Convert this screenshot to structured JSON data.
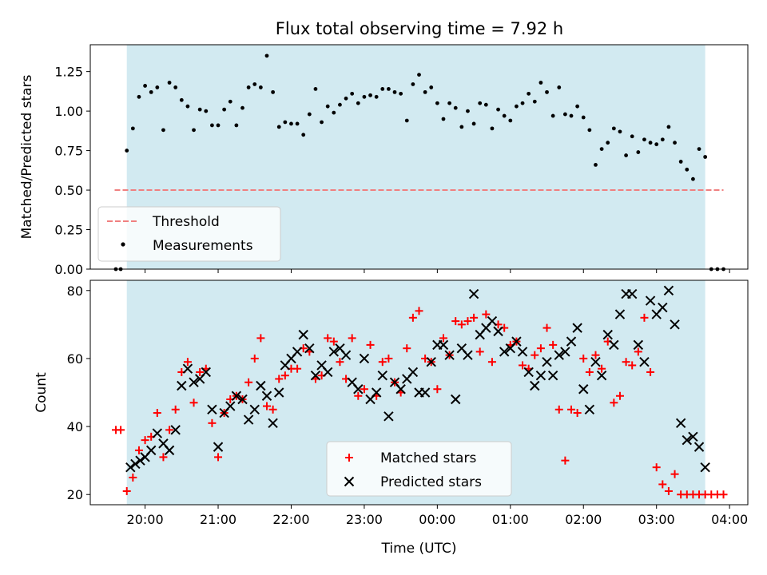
{
  "colors": {
    "band": "#add8e6",
    "threshold": "#f08080",
    "measurement": "#000000",
    "matched": "#ff0000",
    "predicted": "#000000"
  },
  "chart_data": [
    {
      "type": "scatter",
      "title": "Flux total observing time = 7.92 h",
      "xlabel": "",
      "ylabel": "Matched/Predicted stars",
      "x_unit": "time (UTC)",
      "xlim": [
        "19:15",
        "04:15"
      ],
      "ylim": [
        0,
        1.42
      ],
      "yticks": [
        0,
        0.25,
        0.5,
        0.75,
        1.0,
        1.25
      ],
      "ytick_labels": [
        "0.00",
        "0.25",
        "0.50",
        "0.75",
        "1.00",
        "1.25"
      ],
      "xticks": [
        "20:00",
        "21:00",
        "22:00",
        "23:00",
        "00:00",
        "01:00",
        "02:00",
        "03:00",
        "04:00"
      ],
      "observing_window": [
        "19:45",
        "03:40"
      ],
      "threshold": {
        "name": "Threshold",
        "value": 0.5,
        "x_range": [
          "19:35",
          "03:55"
        ]
      },
      "legend": [
        "Threshold",
        "Measurements"
      ],
      "legend_position": "lower-left",
      "series": [
        {
          "name": "Measurements",
          "x": [
            "19:36",
            "19:40",
            "19:45",
            "19:50",
            "19:55",
            "20:00",
            "20:05",
            "20:10",
            "20:15",
            "20:20",
            "20:25",
            "20:30",
            "20:35",
            "20:40",
            "20:45",
            "20:50",
            "20:55",
            "21:00",
            "21:05",
            "21:10",
            "21:15",
            "21:20",
            "21:25",
            "21:30",
            "21:35",
            "21:40",
            "21:45",
            "21:50",
            "21:55",
            "22:00",
            "22:05",
            "22:10",
            "22:15",
            "22:20",
            "22:25",
            "22:30",
            "22:35",
            "22:40",
            "22:45",
            "22:50",
            "22:55",
            "23:00",
            "23:05",
            "23:10",
            "23:15",
            "23:20",
            "23:25",
            "23:30",
            "23:35",
            "23:40",
            "23:45",
            "23:50",
            "23:55",
            "00:00",
            "00:05",
            "00:10",
            "00:15",
            "00:20",
            "00:25",
            "00:30",
            "00:35",
            "00:40",
            "00:45",
            "00:50",
            "00:55",
            "01:00",
            "01:05",
            "01:10",
            "01:15",
            "01:20",
            "01:25",
            "01:30",
            "01:35",
            "01:40",
            "01:45",
            "01:50",
            "01:55",
            "02:00",
            "02:05",
            "02:10",
            "02:15",
            "02:20",
            "02:25",
            "02:30",
            "02:35",
            "02:40",
            "02:45",
            "02:50",
            "02:55",
            "03:00",
            "03:05",
            "03:10",
            "03:15",
            "03:20",
            "03:25",
            "03:30",
            "03:35",
            "03:40",
            "03:45",
            "03:50",
            "03:55"
          ],
          "y": [
            0.0,
            0.0,
            0.75,
            0.89,
            1.09,
            1.16,
            1.12,
            1.15,
            0.88,
            1.18,
            1.15,
            1.07,
            1.03,
            0.88,
            1.01,
            1.0,
            0.91,
            0.91,
            1.01,
            1.06,
            0.91,
            1.02,
            1.15,
            1.17,
            1.15,
            1.35,
            1.12,
            0.9,
            0.93,
            0.92,
            0.92,
            0.85,
            0.98,
            1.14,
            0.93,
            1.03,
            0.99,
            1.04,
            1.08,
            1.11,
            1.05,
            1.09,
            1.1,
            1.09,
            1.14,
            1.14,
            1.12,
            1.11,
            0.94,
            1.17,
            1.23,
            1.12,
            1.15,
            1.05,
            0.95,
            1.05,
            1.02,
            0.9,
            1.0,
            0.92,
            1.05,
            1.04,
            0.89,
            1.01,
            0.97,
            0.94,
            1.03,
            1.05,
            1.11,
            1.06,
            1.18,
            1.12,
            0.97,
            1.15,
            0.98,
            0.97,
            1.03,
            0.96,
            0.88,
            0.66,
            0.76,
            0.8,
            0.89,
            0.87,
            0.72,
            0.84,
            0.74,
            0.82,
            0.8,
            0.79,
            0.82,
            0.9,
            0.8,
            0.68,
            0.63,
            0.57,
            0.76,
            0.71,
            0.0,
            0.0,
            0.0
          ]
        }
      ]
    },
    {
      "type": "scatter",
      "title": "",
      "xlabel": "Time (UTC)",
      "ylabel": "Count",
      "x_unit": "time (UTC)",
      "xlim": [
        "19:15",
        "04:15"
      ],
      "ylim": [
        17,
        83
      ],
      "yticks": [
        20,
        40,
        60,
        80
      ],
      "ytick_labels": [
        "20",
        "40",
        "60",
        "80"
      ],
      "xticks": [
        "20:00",
        "21:00",
        "22:00",
        "23:00",
        "00:00",
        "01:00",
        "02:00",
        "03:00",
        "04:00"
      ],
      "xtick_labels": [
        "20:00",
        "21:00",
        "22:00",
        "23:00",
        "00:00",
        "01:00",
        "02:00",
        "03:00",
        "04:00"
      ],
      "observing_window": [
        "19:45",
        "03:40"
      ],
      "legend": [
        "Matched stars",
        "Predicted stars"
      ],
      "legend_position": "lower-center",
      "series": [
        {
          "name": "Matched stars",
          "x": [
            "19:36",
            "19:40",
            "19:45",
            "19:50",
            "19:55",
            "20:00",
            "20:05",
            "20:10",
            "20:15",
            "20:20",
            "20:25",
            "20:30",
            "20:35",
            "20:40",
            "20:45",
            "20:50",
            "20:55",
            "21:00",
            "21:05",
            "21:10",
            "21:15",
            "21:20",
            "21:25",
            "21:30",
            "21:35",
            "21:40",
            "21:45",
            "21:50",
            "21:55",
            "22:00",
            "22:05",
            "22:10",
            "22:15",
            "22:20",
            "22:25",
            "22:30",
            "22:35",
            "22:40",
            "22:45",
            "22:50",
            "22:55",
            "23:00",
            "23:05",
            "23:10",
            "23:15",
            "23:20",
            "23:25",
            "23:30",
            "23:35",
            "23:40",
            "23:45",
            "23:50",
            "23:55",
            "00:00",
            "00:05",
            "00:10",
            "00:15",
            "00:20",
            "00:25",
            "00:30",
            "00:35",
            "00:40",
            "00:45",
            "00:50",
            "00:55",
            "01:00",
            "01:05",
            "01:10",
            "01:15",
            "01:20",
            "01:25",
            "01:30",
            "01:35",
            "01:40",
            "01:45",
            "01:50",
            "01:55",
            "02:00",
            "02:05",
            "02:10",
            "02:15",
            "02:20",
            "02:25",
            "02:30",
            "02:35",
            "02:40",
            "02:45",
            "02:50",
            "02:55",
            "03:00",
            "03:05",
            "03:10",
            "03:15",
            "03:20",
            "03:25",
            "03:30",
            "03:35",
            "03:40",
            "03:45",
            "03:50",
            "03:55"
          ],
          "y": [
            39,
            39,
            21,
            25,
            33,
            36,
            37,
            44,
            31,
            39,
            45,
            56,
            59,
            47,
            56,
            57,
            41,
            31,
            44,
            48,
            49,
            48,
            53,
            60,
            66,
            46,
            45,
            54,
            55,
            57,
            57,
            63,
            62,
            54,
            55,
            66,
            65,
            59,
            54,
            66,
            49,
            51,
            64,
            49,
            59,
            60,
            53,
            50,
            63,
            72,
            74,
            60,
            59,
            51,
            66,
            61,
            71,
            70,
            71,
            72,
            62,
            73,
            59,
            70,
            69,
            64,
            65,
            58,
            57,
            61,
            63,
            69,
            64,
            45,
            30,
            45,
            44,
            60,
            56,
            61,
            57,
            65,
            47,
            49,
            59,
            58,
            62,
            72,
            56,
            28,
            23,
            21,
            26,
            20,
            20,
            20,
            20,
            20,
            20,
            20,
            20
          ]
        },
        {
          "name": "Predicted stars",
          "x": [
            "19:48",
            "19:52",
            "19:56",
            "20:00",
            "20:05",
            "20:10",
            "20:15",
            "20:20",
            "20:25",
            "20:30",
            "20:35",
            "20:40",
            "20:45",
            "20:50",
            "20:55",
            "21:00",
            "21:05",
            "21:10",
            "21:15",
            "21:20",
            "21:25",
            "21:30",
            "21:35",
            "21:40",
            "21:45",
            "21:50",
            "21:55",
            "22:00",
            "22:05",
            "22:10",
            "22:15",
            "22:20",
            "22:25",
            "22:30",
            "22:35",
            "22:40",
            "22:45",
            "22:50",
            "22:55",
            "23:00",
            "23:05",
            "23:10",
            "23:15",
            "23:20",
            "23:25",
            "23:30",
            "23:35",
            "23:40",
            "23:45",
            "23:50",
            "23:55",
            "00:00",
            "00:05",
            "00:10",
            "00:15",
            "00:20",
            "00:25",
            "00:30",
            "00:35",
            "00:40",
            "00:45",
            "00:50",
            "00:55",
            "01:00",
            "01:05",
            "01:10",
            "01:15",
            "01:20",
            "01:25",
            "01:30",
            "01:35",
            "01:40",
            "01:45",
            "01:50",
            "01:55",
            "02:00",
            "02:05",
            "02:10",
            "02:15",
            "02:20",
            "02:25",
            "02:30",
            "02:35",
            "02:40",
            "02:45",
            "02:50",
            "02:55",
            "03:00",
            "03:05",
            "03:10",
            "03:15",
            "03:20",
            "03:25",
            "03:30",
            "03:35",
            "03:40"
          ],
          "y": [
            28,
            29,
            30,
            31,
            33,
            38,
            35,
            33,
            39,
            52,
            57,
            53,
            54,
            56,
            45,
            34,
            44,
            46,
            49,
            48,
            42,
            45,
            52,
            49,
            41,
            50,
            58,
            60,
            62,
            67,
            63,
            55,
            58,
            56,
            62,
            63,
            61,
            53,
            51,
            60,
            48,
            50,
            55,
            43,
            53,
            51,
            54,
            56,
            50,
            50,
            59,
            64,
            64,
            61,
            48,
            63,
            61,
            79,
            67,
            69,
            71,
            68,
            62,
            63,
            65,
            62,
            56,
            52,
            55,
            59,
            55,
            61,
            62,
            65,
            69,
            51,
            45,
            59,
            55,
            67,
            64,
            73,
            79,
            79,
            64,
            59,
            77,
            73,
            75,
            80,
            70,
            41,
            36,
            37,
            34,
            28
          ]
        }
      ]
    }
  ]
}
